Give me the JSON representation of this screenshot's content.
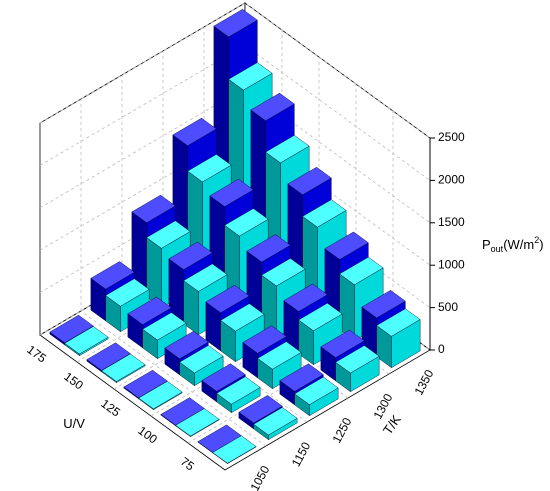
{
  "chart_data": {
    "type": "bar3d",
    "x_label": "T/K",
    "y_label": "U/V",
    "z_label": {
      "base": "P",
      "sub": "out",
      "main": "(W/m",
      "sup": "2",
      "end": ")"
    },
    "x_categories": [
      "1050",
      "1150",
      "1250",
      "1300",
      "1350"
    ],
    "y_categories": [
      "75",
      "100",
      "125",
      "150",
      "175"
    ],
    "zlim": [
      0,
      2500
    ],
    "zticks": [
      0,
      500,
      1000,
      1500,
      2000,
      2500
    ],
    "grid": true,
    "series": [
      {
        "color": "#00ffff",
        "values": [
          [
            5,
            55,
            130,
            220,
            370
          ],
          [
            7,
            100,
            230,
            400,
            660
          ],
          [
            10,
            150,
            360,
            610,
            1020
          ],
          [
            14,
            220,
            510,
            880,
            1460
          ],
          [
            20,
            300,
            700,
            1200,
            2000
          ]
        ]
      },
      {
        "color": "#0000ff",
        "values": [
          [
            5,
            70,
            160,
            275,
            460
          ],
          [
            8,
            125,
            290,
            500,
            830
          ],
          [
            13,
            190,
            450,
            765,
            1275
          ],
          [
            18,
            275,
            640,
            1100,
            1830
          ],
          [
            25,
            375,
            875,
            1500,
            2500
          ]
        ]
      }
    ]
  }
}
